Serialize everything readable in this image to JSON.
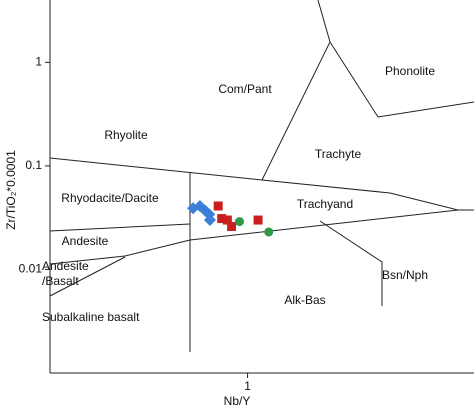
{
  "chart_data": {
    "type": "scatter",
    "x_label": "Nb/Y",
    "y_label": "Zr/TiO₂*0.0001",
    "log_x": true,
    "log_y": true,
    "xlim": [
      0.1,
      14
    ],
    "ylim": [
      0.001,
      4
    ],
    "xticks": [
      1
    ],
    "yticks": [
      0.01,
      0.1,
      1
    ],
    "annotations": [
      "Com/Pant",
      "Phonolite",
      "Rhyolite",
      "Trachyte",
      "Rhyodacite/Dacite",
      "Trachyand",
      "Andesite",
      "Andesite\n/Basalt",
      "Bsn/Nph",
      "Alk-Bas",
      "Subalkaline basalt"
    ],
    "series": [
      {
        "color": "#3d7fd6",
        "marker": "diamond",
        "x": [
          0.53,
          0.574,
          0.61,
          0.64,
          0.645
        ],
        "values": [
          0.039,
          0.041,
          0.037,
          0.034,
          0.03
        ]
      },
      {
        "color": "#c8201e",
        "marker": "square",
        "x": [
          0.71,
          0.74,
          0.79,
          0.83,
          1.13
        ],
        "values": [
          0.041,
          0.031,
          0.03,
          0.026,
          0.03
        ]
      },
      {
        "color": "#2e9a48",
        "marker": "circle",
        "x": [
          0.91,
          1.28
        ],
        "values": [
          0.029,
          0.023
        ]
      }
    ]
  }
}
